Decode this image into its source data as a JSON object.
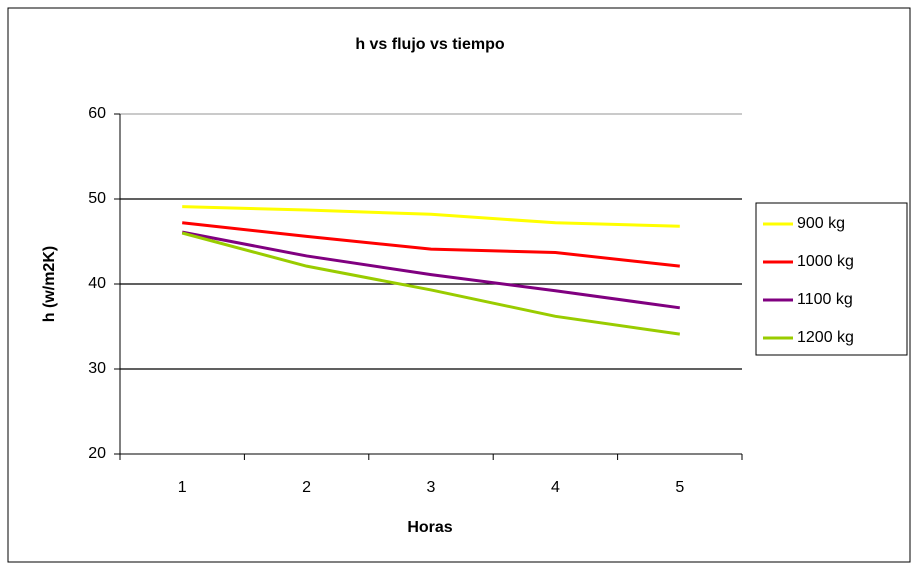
{
  "chart_data": {
    "type": "line",
    "title": "h vs flujo vs tiempo",
    "x_label": "Horas",
    "y_label": "h (w/m2K)",
    "categories": [
      "1",
      "2",
      "3",
      "4",
      "5"
    ],
    "series": [
      {
        "name": "900 kg",
        "color": "#ffff00",
        "values": [
          49.1,
          48.7,
          48.2,
          47.2,
          46.8
        ]
      },
      {
        "name": "1000 kg",
        "color": "#ff0000",
        "values": [
          47.2,
          45.6,
          44.1,
          43.7,
          42.1
        ]
      },
      {
        "name": "1100 kg",
        "color": "#800080",
        "values": [
          46.1,
          43.3,
          41.1,
          39.2,
          37.2
        ]
      },
      {
        "name": "1200 kg",
        "color": "#99cc00",
        "values": [
          46.0,
          42.1,
          39.3,
          36.2,
          34.1
        ]
      }
    ],
    "ylim": [
      20,
      60
    ],
    "yticks": [
      20,
      30,
      40,
      50,
      60
    ],
    "grid": true,
    "legend": "right"
  }
}
